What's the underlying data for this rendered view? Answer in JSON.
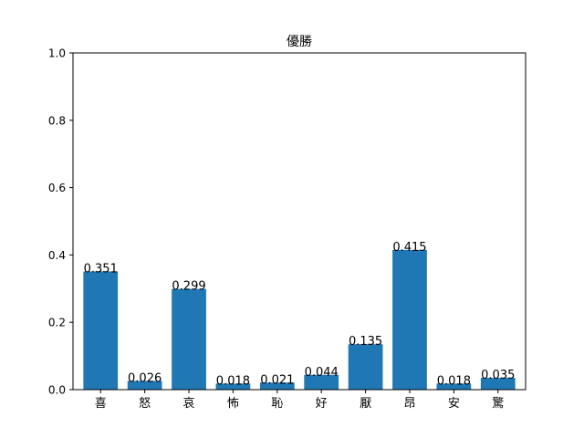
{
  "chart_data": {
    "type": "bar",
    "title": "優勝",
    "xlabel": "",
    "ylabel": "",
    "categories": [
      "喜",
      "怒",
      "哀",
      "怖",
      "恥",
      "好",
      "厭",
      "昂",
      "安",
      "驚"
    ],
    "values": [
      0.351,
      0.026,
      0.299,
      0.018,
      0.021,
      0.044,
      0.135,
      0.415,
      0.018,
      0.035
    ],
    "value_labels": [
      "0.351",
      "0.026",
      "0.299",
      "0.018",
      "0.021",
      "0.044",
      "0.135",
      "0.415",
      "0.018",
      "0.035"
    ],
    "ylim": [
      0,
      1.0
    ],
    "yticks": [
      0.0,
      0.2,
      0.4,
      0.6,
      0.8,
      1.0
    ],
    "ytick_labels": [
      "0.0",
      "0.2",
      "0.4",
      "0.6",
      "0.8",
      "1.0"
    ],
    "grid": false,
    "bar_color": "#1f77b4"
  }
}
